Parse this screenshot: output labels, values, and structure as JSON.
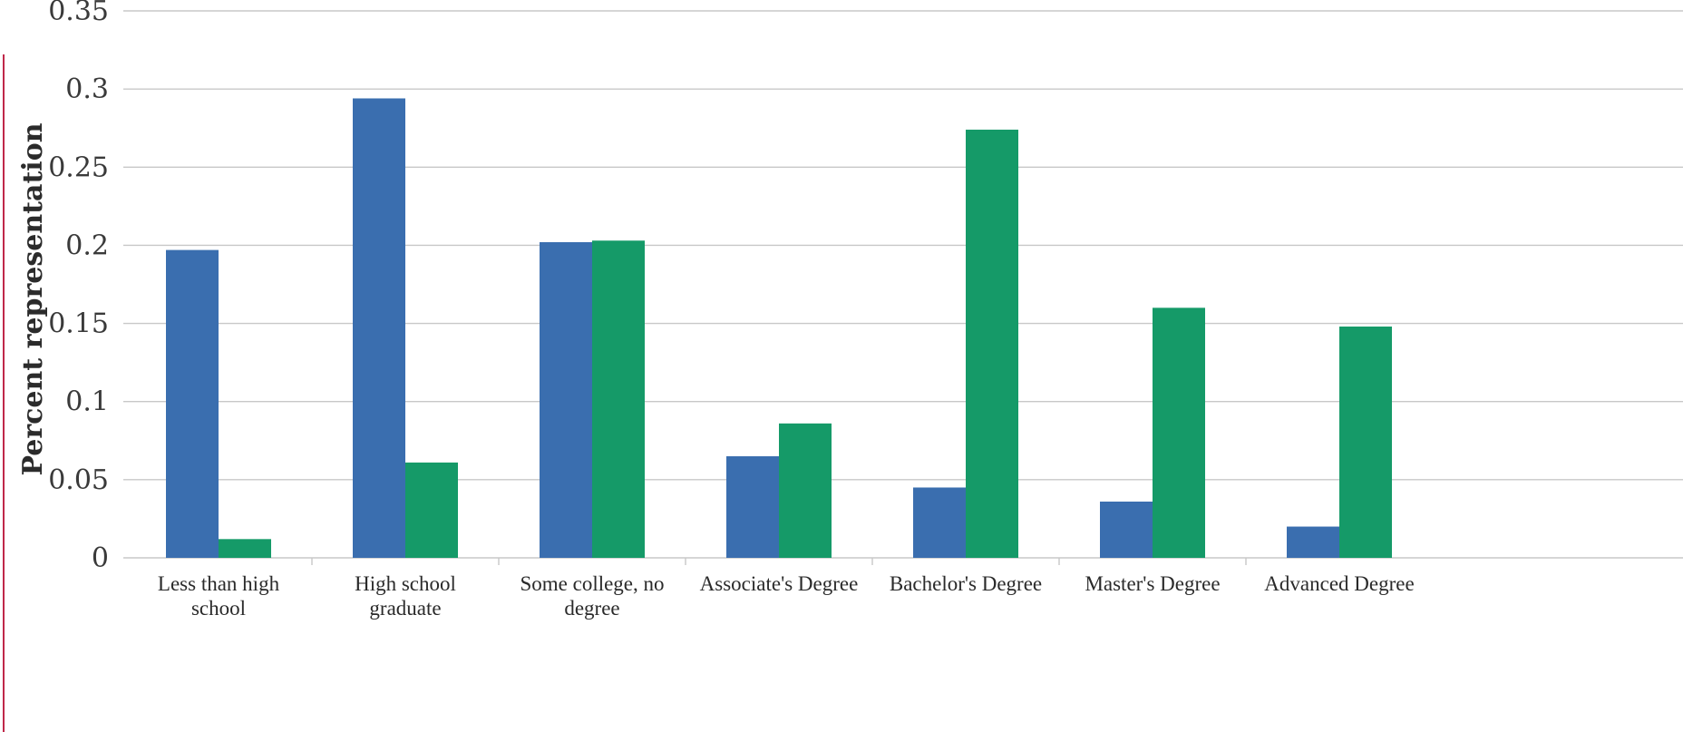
{
  "chart_data": {
    "type": "bar",
    "title": "",
    "xlabel": "",
    "ylabel": "Percent representation",
    "ylim": [
      0,
      0.35
    ],
    "yticks": [
      0,
      0.05,
      0.1,
      0.15,
      0.2,
      0.25,
      0.3,
      0.35
    ],
    "ytick_labels": [
      "0",
      "0.05",
      "0.1",
      "0.15",
      "0.2",
      "0.25",
      "0.3",
      "0.35"
    ],
    "grid": true,
    "categories": [
      "Less than high school",
      "High school graduate",
      "Some college, no degree",
      "Associate's Degree",
      "Bachelor's Degree",
      "Master's Degree",
      "Advanced Degree"
    ],
    "category_lines": [
      [
        "Less than high",
        "school"
      ],
      [
        "High school",
        "graduate"
      ],
      [
        "Some college, no",
        "degree"
      ],
      [
        "Associate's Degree"
      ],
      [
        "Bachelor's Degree"
      ],
      [
        "Master's Degree"
      ],
      [
        "Advanced Degree"
      ]
    ],
    "series": [
      {
        "values": [
          0.197,
          0.294,
          0.202,
          0.065,
          0.045,
          0.036,
          0.02
        ],
        "color": "#3a6eaf"
      },
      {
        "values": [
          0.012,
          0.061,
          0.203,
          0.086,
          0.274,
          0.16,
          0.148
        ],
        "color": "#159a68"
      }
    ],
    "colors": {
      "gridline": "#c8c8c8",
      "axis_rule": "#c0284a"
    }
  }
}
